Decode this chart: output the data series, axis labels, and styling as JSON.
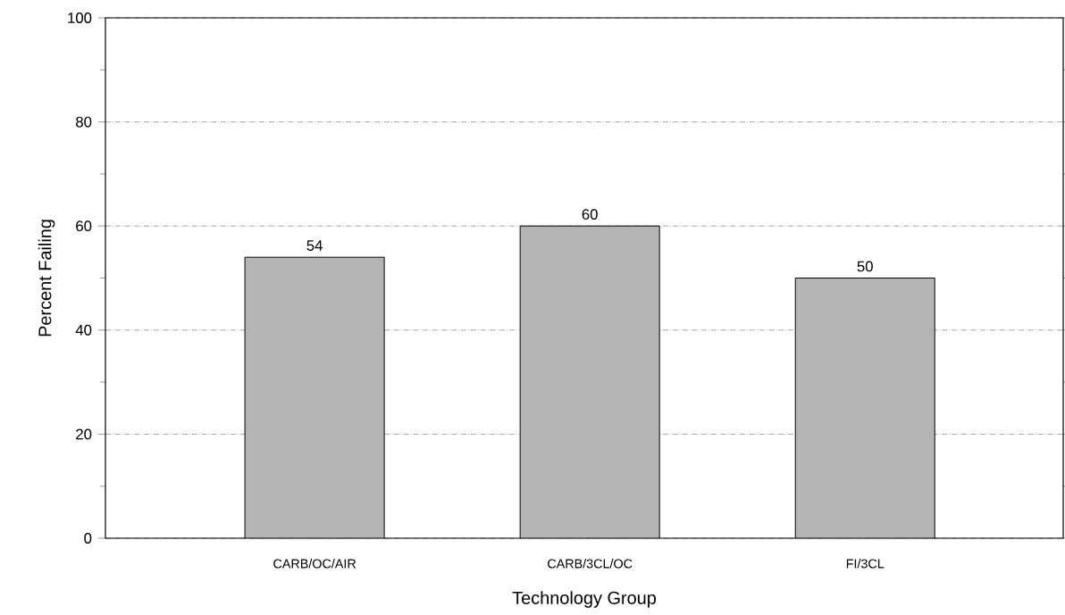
{
  "chart_data": {
    "type": "bar",
    "xlabel": "Technology Group",
    "ylabel": "Percent Failing",
    "categories": [
      "CARB/OC/AIR",
      "CARB/3CL/OC",
      "FI/3CL"
    ],
    "values": [
      54,
      60,
      50
    ],
    "color": "#b4b4b4",
    "data_labels": true,
    "ylim": [
      0,
      100
    ],
    "yticks": [
      0,
      20,
      40,
      60,
      80,
      100
    ],
    "grid": "y"
  }
}
